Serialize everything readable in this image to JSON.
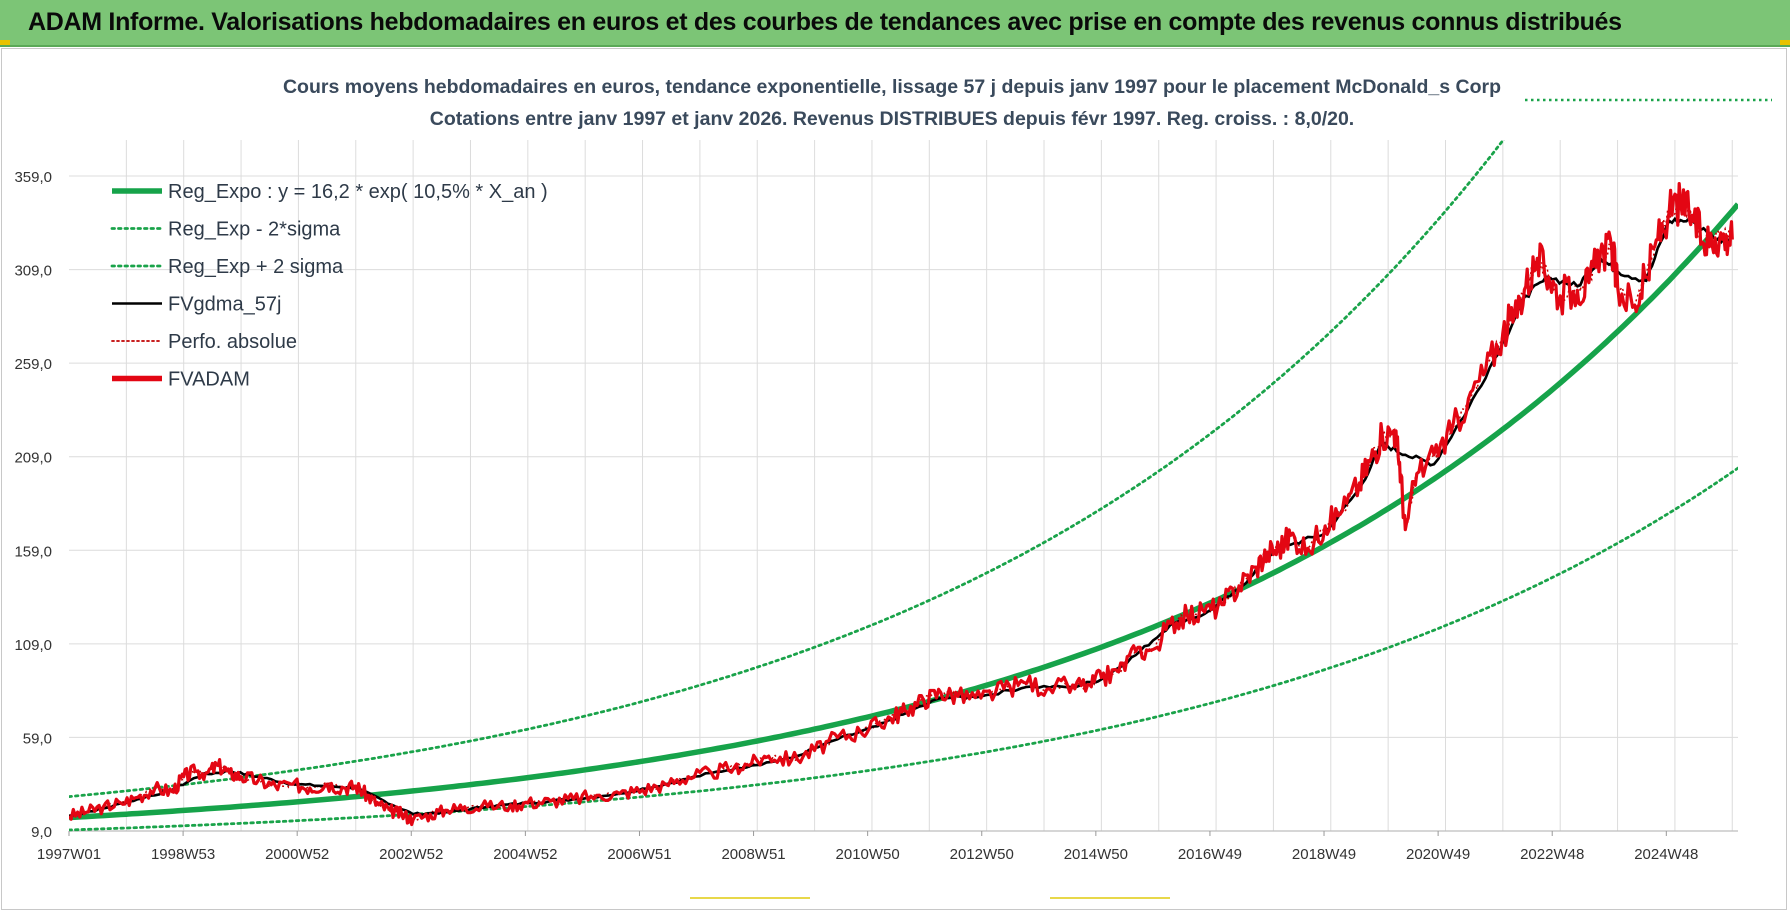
{
  "banner": {
    "title": "ADAM Informe. Valorisations hebdomadaires en euros et des courbes de tendances avec prise en compte des revenus connus distribués"
  },
  "colors": {
    "banner_bg": "#7cc576",
    "trend": "#16a34a",
    "band": "#1aa34a",
    "smooth": "#000000",
    "price": "#e30613",
    "perf": "#c00000",
    "grid": "#dcdcdc"
  },
  "chart_data": {
    "type": "line",
    "title": "Cours moyens hebdomadaires en euros, tendance exponentielle, lissage 57 j depuis janv 1997 pour le placement McDonald_s Corp",
    "subtitle": "Cotations entre janv 1997 et janv 2026. Revenus DISTRIBUES depuis févr 1997. Reg. croiss. : 8,0/20.",
    "y_ticks": [
      "9,0",
      "59,0",
      "109,0",
      "159,0",
      "209,0",
      "259,0",
      "309,0",
      "359,0"
    ],
    "ylim": [
      9,
      359
    ],
    "x_tick_labels": [
      "1997W01",
      "1998W53",
      "2000W52",
      "2002W52",
      "2004W52",
      "2006W51",
      "2008W51",
      "2010W50",
      "2012W50",
      "2014W50",
      "2016W49",
      "2018W49",
      "2020W49",
      "2022W48",
      "2024W48"
    ],
    "xlim": [
      1997.0,
      2026.1
    ],
    "grid": true,
    "legend_position": "top-left",
    "legend": [
      {
        "label": "Reg_Expo : y = 16,2 * exp( 10,5% *  X_an )",
        "style": "thick-solid",
        "color": "#16a34a"
      },
      {
        "label": "Reg_Exp - 2*sigma",
        "style": "dotted",
        "color": "#1aa34a"
      },
      {
        "label": "Reg_Exp + 2 sigma",
        "style": "dotted",
        "color": "#1aa34a"
      },
      {
        "label": "FVgdma_57j",
        "style": "solid",
        "color": "#000000"
      },
      {
        "label": "Perfo. absolue",
        "style": "dotted",
        "color": "#c00000"
      },
      {
        "label": "FVADAM",
        "style": "thick-solid",
        "color": "#e30613"
      }
    ],
    "trend": {
      "a": 16.2,
      "b": 0.105,
      "lower_factor": 0.59,
      "upper_factor": 1.69
    },
    "series": [
      {
        "name": "FVADAM",
        "x": [
          1997.0,
          1997.3,
          1997.6,
          1997.9,
          1998.2,
          1998.5,
          1998.8,
          1999.0,
          1999.2,
          1999.4,
          1999.6,
          1999.8,
          2000.0,
          2000.3,
          2000.6,
          2000.9,
          2001.2,
          2001.5,
          2001.8,
          2002.0,
          2002.2,
          2002.4,
          2002.6,
          2002.8,
          2003.0,
          2003.3,
          2003.6,
          2003.9,
          2004.3,
          2004.7,
          2005.0,
          2005.4,
          2005.8,
          2006.2,
          2006.6,
          2007.0,
          2007.4,
          2007.8,
          2008.2,
          2008.6,
          2008.9,
          2009.2,
          2009.6,
          2010.0,
          2010.4,
          2010.8,
          2011.1,
          2011.4,
          2011.6,
          2011.9,
          2012.2,
          2012.5,
          2012.9,
          2013.3,
          2013.7,
          2014.1,
          2014.5,
          2014.8,
          2015.0,
          2015.3,
          2015.6,
          2015.9,
          2016.2,
          2016.5,
          2016.8,
          2017.1,
          2017.4,
          2017.7,
          2017.9,
          2018.1,
          2018.3,
          2018.6,
          2018.9,
          2019.2,
          2019.5,
          2019.7,
          2019.9,
          2020.1,
          2020.2,
          2020.3,
          2020.5,
          2020.8,
          2021.1,
          2021.4,
          2021.7,
          2022.0,
          2022.2,
          2022.4,
          2022.6,
          2022.8,
          2023.0,
          2023.3,
          2023.5,
          2023.7,
          2023.9,
          2024.0,
          2024.3,
          2024.5,
          2024.7,
          2024.9,
          2025.1,
          2025.3,
          2025.5,
          2025.7,
          2025.9,
          2026.0
        ],
        "y": [
          17,
          19,
          22,
          24,
          27,
          32,
          30,
          38,
          41,
          40,
          44,
          40,
          38,
          36,
          33,
          34,
          32,
          34,
          32,
          33,
          28,
          23,
          20,
          18,
          15,
          18,
          20,
          22,
          22,
          23,
          24,
          25,
          26,
          28,
          29,
          31,
          34,
          38,
          40,
          43,
          45,
          49,
          47,
          52,
          59,
          62,
          66,
          71,
          73,
          79,
          83,
          81,
          80,
          85,
          88,
          85,
          87,
          87,
          91,
          94,
          105,
          106,
          120,
          124,
          126,
          130,
          140,
          150,
          158,
          160,
          167,
          160,
          172,
          180,
          195,
          208,
          220,
          223,
          206,
          170,
          200,
          210,
          222,
          240,
          255,
          275,
          285,
          300,
          315,
          305,
          295,
          298,
          302,
          318,
          320,
          300,
          290,
          305,
          325,
          340,
          345,
          338,
          323,
          326,
          327,
          325
        ]
      },
      {
        "name": "FVgdma_57j",
        "x": [
          1997.0,
          1997.6,
          1998.2,
          1998.8,
          1999.3,
          1999.8,
          2000.3,
          2000.9,
          2001.5,
          2002.0,
          2002.5,
          2003.0,
          2003.6,
          2004.3,
          2005.0,
          2005.8,
          2006.6,
          2007.4,
          2008.2,
          2008.9,
          2009.6,
          2010.4,
          2011.1,
          2011.6,
          2012.2,
          2012.9,
          2013.7,
          2014.5,
          2015.0,
          2015.6,
          2016.2,
          2016.8,
          2017.4,
          2017.9,
          2018.3,
          2018.9,
          2019.5,
          2019.9,
          2020.3,
          2020.8,
          2021.4,
          2022.0,
          2022.4,
          2022.8,
          2023.3,
          2023.7,
          2024.0,
          2024.5,
          2024.9,
          2025.3,
          2025.7,
          2026.0
        ],
        "y": [
          17,
          21,
          26,
          31,
          39,
          41,
          38,
          34,
          33,
          32,
          25,
          18,
          19,
          22,
          24,
          26,
          29,
          34,
          40,
          44,
          48,
          58,
          65,
          72,
          80,
          81,
          86,
          86,
          90,
          103,
          119,
          125,
          138,
          156,
          162,
          168,
          192,
          216,
          210,
          205,
          235,
          270,
          295,
          305,
          300,
          315,
          308,
          303,
          335,
          335,
          325,
          326
        ]
      }
    ]
  }
}
